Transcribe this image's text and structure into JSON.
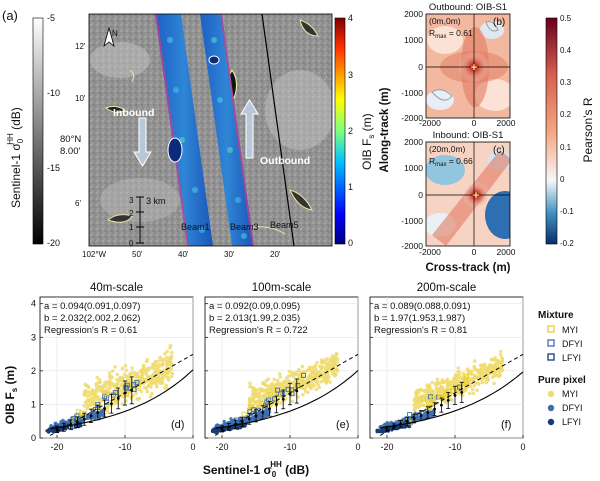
{
  "colors": {
    "myi": "#f0dc6e",
    "myi_edge": "#e8cf3a",
    "dfyi": "#3d6fb0",
    "lfyi": "#173a78",
    "water_blue": "#1f6fc8",
    "pos_red": "#b2182b",
    "neg_blue": "#2166ac"
  },
  "panel_a": {
    "label": "(a)",
    "colorbar_left": {
      "label_main": "Sentinel-1 σ",
      "label_sub": "0",
      "label_sup": "HH",
      "label_unit": " (dB)",
      "ticks": [
        "-5",
        "-10",
        "-15",
        "-20"
      ]
    },
    "colorbar_right": {
      "label_main": "OIB F",
      "label_sub": "s",
      "label_unit": " (m)",
      "ticks": [
        "4",
        "3",
        "2",
        "1",
        "0"
      ]
    },
    "lat_label_1": "80°N",
    "lat_label_2": "8.00'",
    "lat_ticks": [
      "12'",
      "10'",
      "6'"
    ],
    "lon_ticks": [
      "102°W",
      "50'",
      "40'",
      "30'",
      "20'"
    ],
    "north_label": "N",
    "inbound_label": "Inbound",
    "outbound_label": "Outbound",
    "scale_label": "3 km",
    "scale_ticks": [
      "3",
      "2",
      "1",
      "0"
    ],
    "beam_labels": [
      "Beam1",
      "Beam3",
      "Beam5"
    ]
  },
  "panel_b": {
    "title": "Outbound: OIB-S1",
    "tag": "(b)",
    "shift": "(0m,0m)",
    "rmax": "R",
    "rmax_sub": "max",
    "rmax_val": " = 0.61"
  },
  "panel_c": {
    "title": "Inbound: OIB-S1",
    "tag": "(c)",
    "shift": "(20m,0m)",
    "rmax": "R",
    "rmax_sub": "max",
    "rmax_val": " = 0.66"
  },
  "corr_axes": {
    "ylabel": "Along-track (m)",
    "xlabel": "Cross-track (m)",
    "y_ticks": [
      "2000",
      "1000",
      "0",
      "-1000",
      "-2000"
    ],
    "x_ticks": [
      "-2000",
      "0",
      "2000"
    ]
  },
  "corr_colorbar": {
    "label": "Pearson's R",
    "ticks": [
      "0.5",
      "0.4",
      "0.3",
      "0.2",
      "0.1",
      "0",
      "-0.1",
      "-0.2"
    ]
  },
  "scatter_common": {
    "ylabel_main": "OIB F",
    "ylabel_sub": "s",
    "ylabel_unit": " (m)",
    "xlabel_main": "Sentinel-1 σ",
    "xlabel_sub": "0",
    "xlabel_sup": "HH",
    "xlabel_unit": " (dB)"
  },
  "legend": {
    "mixture_title": "Mixture",
    "pure_title": "Pure pixel",
    "items": [
      "MYI",
      "DFYI",
      "LFYI"
    ]
  },
  "chart_data": [
    {
      "type": "scatter",
      "panel": "(d)",
      "title": "40m-scale",
      "a": "a = 0.094(0.091,0.097)",
      "b": "b = 2.032(2.002,2.062)",
      "r": "Regression's R = 0.61",
      "xlim": [
        -22.5,
        0
      ],
      "ylim": [
        0,
        4.2
      ],
      "x_ticks": [
        "-20",
        "-10",
        "0"
      ],
      "y_ticks": [
        "4",
        "3",
        "2",
        "1",
        "0"
      ],
      "fit": {
        "a": 0.094,
        "b": 2.032
      },
      "binned": {
        "x": [
          -20,
          -19,
          -18,
          -17,
          -16,
          -15,
          -14,
          -13,
          -12,
          -11,
          -10,
          -9
        ],
        "y": [
          0.26,
          0.32,
          0.4,
          0.47,
          0.56,
          0.66,
          0.76,
          0.88,
          1.02,
          1.18,
          1.34,
          1.42
        ],
        "err": [
          0.1,
          0.12,
          0.14,
          0.16,
          0.18,
          0.2,
          0.22,
          0.25,
          0.28,
          0.31,
          0.36,
          0.4
        ]
      }
    },
    {
      "type": "scatter",
      "panel": "(e)",
      "title": "100m-scale",
      "a": "a = 0.092(0.09,0.095)",
      "b": "b = 2.013(1.99,2.035)",
      "r": "Regression's R = 0.722",
      "xlim": [
        -22.5,
        0
      ],
      "ylim": [
        0,
        4.2
      ],
      "x_ticks": [
        "-20",
        "-10",
        "0"
      ],
      "y_ticks": [
        "4",
        "3",
        "2",
        "1",
        "0"
      ],
      "fit": {
        "a": 0.092,
        "b": 2.013
      },
      "binned": {
        "x": [
          -20,
          -19,
          -18,
          -17,
          -16,
          -15,
          -14,
          -13,
          -12,
          -11,
          -10,
          -9
        ],
        "y": [
          0.27,
          0.33,
          0.41,
          0.48,
          0.57,
          0.66,
          0.76,
          0.87,
          1.0,
          1.15,
          1.31,
          1.4
        ],
        "err": [
          0.09,
          0.1,
          0.12,
          0.14,
          0.16,
          0.18,
          0.2,
          0.22,
          0.25,
          0.28,
          0.32,
          0.36
        ]
      }
    },
    {
      "type": "scatter",
      "panel": "(f)",
      "title": "200m-scale",
      "a": "a = 0.089(0.088,0.091)",
      "b": "b = 1.97(1.953,1.987)",
      "r": "Regression's R = 0.81",
      "xlim": [
        -22.5,
        0
      ],
      "ylim": [
        0,
        4.2
      ],
      "x_ticks": [
        "-20",
        "-10",
        "0"
      ],
      "y_ticks": [
        "4",
        "3",
        "2",
        "1",
        "0"
      ],
      "fit": {
        "a": 0.089,
        "b": 1.97
      },
      "binned": {
        "x": [
          -20,
          -19,
          -18,
          -17,
          -16,
          -15,
          -14,
          -13,
          -12,
          -11,
          -10,
          -9
        ],
        "y": [
          0.28,
          0.34,
          0.42,
          0.49,
          0.58,
          0.67,
          0.76,
          0.86,
          0.98,
          1.12,
          1.27,
          1.36
        ],
        "err": [
          0.07,
          0.08,
          0.1,
          0.12,
          0.13,
          0.15,
          0.17,
          0.19,
          0.21,
          0.24,
          0.27,
          0.3
        ]
      }
    }
  ]
}
